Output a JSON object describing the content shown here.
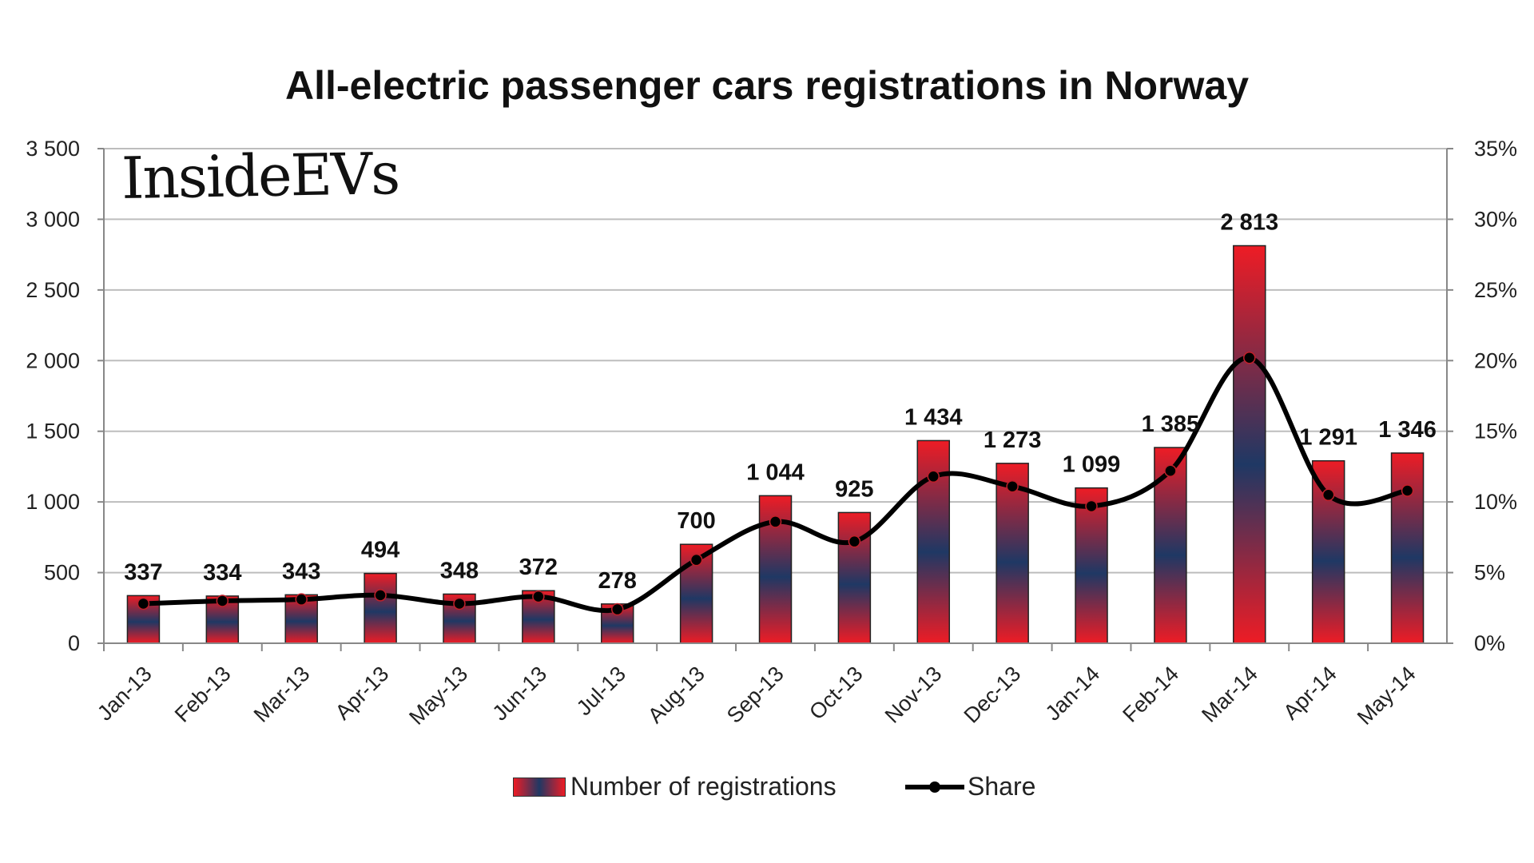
{
  "chart_data": {
    "type": "bar+line",
    "title": "All-electric passenger cars registrations in Norway",
    "watermark": "InsideEVs",
    "categories": [
      "Jan-13",
      "Feb-13",
      "Mar-13",
      "Apr-13",
      "May-13",
      "Jun-13",
      "Jul-13",
      "Aug-13",
      "Sep-13",
      "Oct-13",
      "Nov-13",
      "Dec-13",
      "Jan-14",
      "Feb-14",
      "Mar-14",
      "Apr-14",
      "May-14"
    ],
    "series": [
      {
        "name": "Number of registrations",
        "type": "bar",
        "axis": "left",
        "values": [
          337,
          334,
          343,
          494,
          348,
          372,
          278,
          700,
          1044,
          925,
          1434,
          1273,
          1099,
          1385,
          2813,
          1291,
          1346
        ],
        "labels": [
          "337",
          "334",
          "343",
          "494",
          "348",
          "372",
          "278",
          "700",
          "1 044",
          "925",
          "1 434",
          "1 273",
          "1 099",
          "1 385",
          "2 813",
          "1 291",
          "1 346"
        ]
      },
      {
        "name": "Share",
        "type": "line",
        "axis": "right",
        "unit": "%",
        "values": [
          2.8,
          3.0,
          3.1,
          3.4,
          2.8,
          3.3,
          2.4,
          5.9,
          8.6,
          7.2,
          11.8,
          11.1,
          9.7,
          12.2,
          20.2,
          10.5,
          10.8
        ]
      }
    ],
    "y_left": {
      "range": [
        0,
        3500
      ],
      "ticks": [
        "0",
        "500",
        "1 000",
        "1 500",
        "2 000",
        "2 500",
        "3 000",
        "3 500"
      ]
    },
    "y_right": {
      "range": [
        0,
        35
      ],
      "ticks": [
        "0%",
        "5%",
        "10%",
        "15%",
        "20%",
        "25%",
        "30%",
        "35%"
      ]
    },
    "grid": true,
    "legend": "bottom",
    "colors": {
      "bar_outer": "#ee1c25",
      "bar_inner": "#1f3864",
      "line": "#000000"
    }
  }
}
